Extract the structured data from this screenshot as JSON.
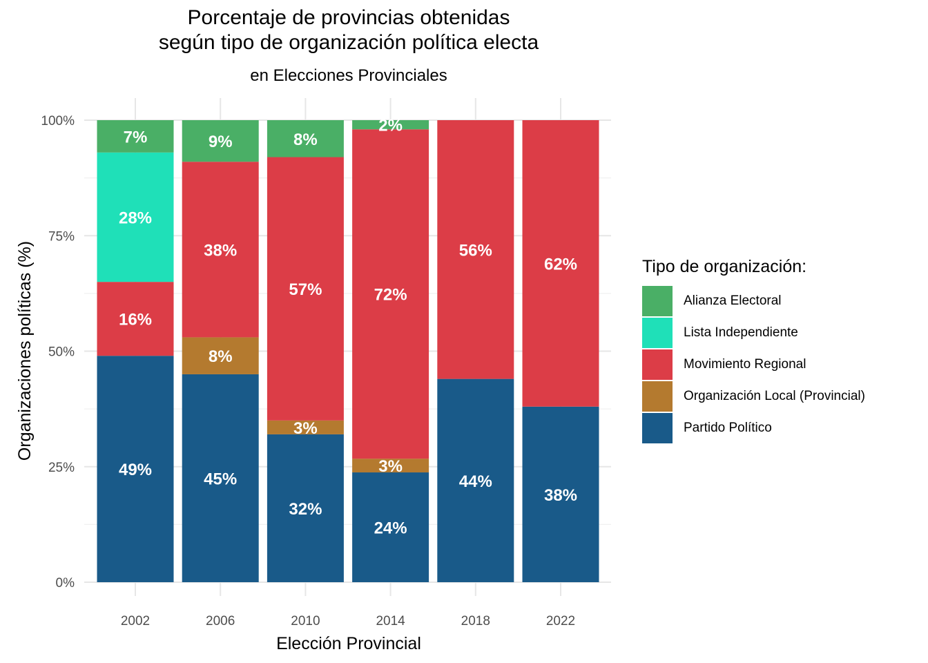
{
  "chart_data": {
    "type": "bar",
    "stacked": true,
    "title_lines": [
      "Porcentaje de provincias obtenidas",
      "según tipo de organización política electa"
    ],
    "subtitle": "en Elecciones Provinciales",
    "xlabel": "Elección Provincial",
    "ylabel": "Organizaciones políticas (%)",
    "categories": [
      "2002",
      "2006",
      "2010",
      "2014",
      "2018",
      "2022"
    ],
    "ylim": [
      0,
      1
    ],
    "y_ticks": [
      {
        "value": 0,
        "label": "0%"
      },
      {
        "value": 0.25,
        "label": "25%"
      },
      {
        "value": 0.5,
        "label": "50%"
      },
      {
        "value": 0.75,
        "label": "75%"
      },
      {
        "value": 1,
        "label": "100%"
      }
    ],
    "grid": true,
    "legend_title": "Tipo de organización:",
    "legend_position": "right",
    "series": [
      {
        "name": "Partido Político",
        "color": "#195A89",
        "values": [
          0.49,
          0.45,
          0.32,
          0.24,
          0.44,
          0.38
        ],
        "labels": [
          "49%",
          "45%",
          "32%",
          "24%",
          "44%",
          "38%"
        ]
      },
      {
        "name": "Organización Local (Provincial)",
        "color": "#B47A2F",
        "values": [
          0,
          0.08,
          0.03,
          0.03,
          0,
          0
        ],
        "labels": [
          "",
          "8%",
          "3%",
          "3%",
          "",
          ""
        ]
      },
      {
        "name": "Movimiento Regional",
        "color": "#DC3D47",
        "values": [
          0.16,
          0.38,
          0.57,
          0.72,
          0.56,
          0.62
        ],
        "labels": [
          "16%",
          "38%",
          "57%",
          "72%",
          "56%",
          "62%"
        ]
      },
      {
        "name": "Lista Independiente",
        "color": "#1FE0B8",
        "values": [
          0.28,
          0,
          0,
          0,
          0,
          0
        ],
        "labels": [
          "28%",
          "",
          "",
          "",
          "",
          ""
        ]
      },
      {
        "name": "Alianza Electoral",
        "color": "#4AAF66",
        "values": [
          0.07,
          0.09,
          0.08,
          0.02,
          0,
          0
        ],
        "labels": [
          "7%",
          "9%",
          "8%",
          "2%",
          "",
          ""
        ]
      }
    ],
    "legend_order": [
      "Alianza Electoral",
      "Lista Independiente",
      "Movimiento Regional",
      "Organización Local (Provincial)",
      "Partido Político"
    ]
  }
}
